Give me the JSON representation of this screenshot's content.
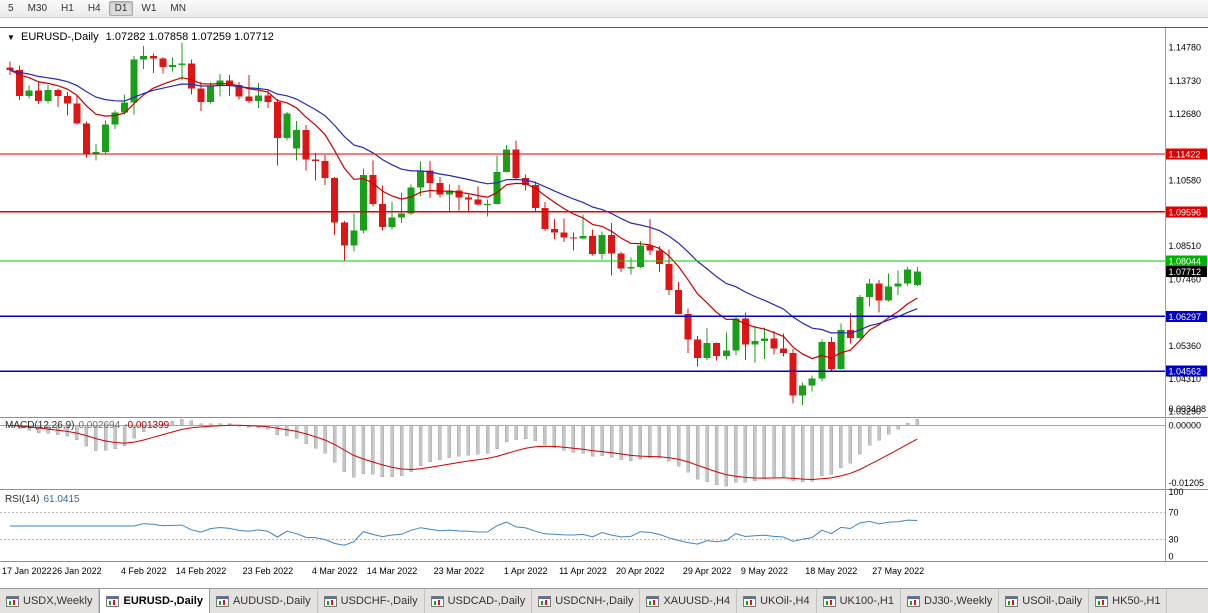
{
  "icons": {
    "dropdown": "▼"
  },
  "toolbar": {
    "timeframes": [
      "5",
      "M30",
      "H1",
      "H4",
      "D1",
      "W1",
      "MN"
    ],
    "active": "D1"
  },
  "chart": {
    "title": "EURUSD-,Daily",
    "ohlc": "1.07282 1.07858 1.07259 1.07712"
  },
  "price_axis": [
    {
      "text": "1.14780",
      "price": 1.1478,
      "style": "plain"
    },
    {
      "text": "1.13730",
      "price": 1.1373,
      "style": "plain"
    },
    {
      "text": "1.12680",
      "price": 1.1268,
      "style": "plain"
    },
    {
      "text": "1.11422",
      "price": 1.11422,
      "style": "box",
      "color": "#E00000"
    },
    {
      "text": "1.10580",
      "price": 1.1058,
      "style": "plain"
    },
    {
      "text": "1.09596",
      "price": 1.09596,
      "style": "box",
      "color": "#E00000"
    },
    {
      "text": "1.08510",
      "price": 1.0851,
      "style": "plain"
    },
    {
      "text": "1.08044",
      "price": 1.08044,
      "style": "box",
      "color": "#00B200"
    },
    {
      "text": "1.07712",
      "price": 1.07712,
      "style": "box",
      "color": "#000000"
    },
    {
      "text": "1.07460",
      "price": 1.0746,
      "style": "plain"
    },
    {
      "text": "1.06297",
      "price": 1.06297,
      "style": "box",
      "color": "#0000C8"
    },
    {
      "text": "1.05360",
      "price": 1.0536,
      "style": "plain"
    },
    {
      "text": "1.04562",
      "price": 1.04562,
      "style": "box",
      "color": "#0000C8"
    },
    {
      "text": "1.04310",
      "price": 1.0431,
      "style": "plain"
    },
    {
      "text": "1.03290",
      "price": 1.0329,
      "style": "plain"
    }
  ],
  "levels": [
    {
      "price": 1.11422,
      "color": "#E00000"
    },
    {
      "price": 1.09596,
      "color": "#E00000"
    },
    {
      "price": 1.08044,
      "color": "#00CC00"
    },
    {
      "price": 1.06297,
      "color": "#0000C8"
    },
    {
      "price": 1.04562,
      "color": "#0000C8"
    }
  ],
  "macd": {
    "label": "MACD(12,26,9)",
    "value_main": "0.002694",
    "value_signal": "-0.001399",
    "fast": 12,
    "slow": 26,
    "signal": 9,
    "axis": [
      {
        "text": "0.003408",
        "value": 0.003408
      },
      {
        "text": "0.00000",
        "value": 0
      },
      {
        "text": "-0.01205",
        "value": -0.01205
      }
    ]
  },
  "rsi": {
    "label": "RSI(14)",
    "value": "61.0415",
    "period": 14,
    "levels": [
      70,
      30
    ],
    "axis": [
      {
        "text": "100",
        "value": 100
      },
      {
        "text": "70",
        "value": 70
      },
      {
        "text": "30",
        "value": 30
      },
      {
        "text": "0",
        "value": 0
      }
    ]
  },
  "x_axis": [
    {
      "index": 0,
      "text": "17 Jan 2022"
    },
    {
      "index": 7,
      "text": "26 Jan 2022"
    },
    {
      "index": 14,
      "text": "4 Feb 2022"
    },
    {
      "index": 20,
      "text": "14 Feb 2022"
    },
    {
      "index": 27,
      "text": "23 Feb 2022"
    },
    {
      "index": 34,
      "text": "4 Mar 2022"
    },
    {
      "index": 40,
      "text": "14 Mar 2022"
    },
    {
      "index": 47,
      "text": "23 Mar 2022"
    },
    {
      "index": 54,
      "text": "1 Apr 2022"
    },
    {
      "index": 60,
      "text": "11 Apr 2022"
    },
    {
      "index": 66,
      "text": "20 Apr 2022"
    },
    {
      "index": 73,
      "text": "29 Apr 2022"
    },
    {
      "index": 79,
      "text": "9 May 2022"
    },
    {
      "index": 86,
      "text": "18 May 2022"
    },
    {
      "index": 93,
      "text": "27 May 2022"
    }
  ],
  "tabs": [
    {
      "label": "USDX,Weekly",
      "active": false
    },
    {
      "label": "EURUSD-,Daily",
      "active": true
    },
    {
      "label": "AUDUSD-,Daily",
      "active": false
    },
    {
      "label": "USDCHF-,Daily",
      "active": false
    },
    {
      "label": "USDCAD-,Daily",
      "active": false
    },
    {
      "label": "USDCNH-,Daily",
      "active": false
    },
    {
      "label": "XAUUSD-,H4",
      "active": false
    },
    {
      "label": "UKOil-,H4",
      "active": false
    },
    {
      "label": "UK100-,H1",
      "active": false
    },
    {
      "label": "DJ30-,Weekly",
      "active": false
    },
    {
      "label": "USOil-,Daily",
      "active": false
    },
    {
      "label": "HK50-,H1",
      "active": false
    }
  ],
  "colors": {
    "up": "#18A018",
    "down": "#DD1515",
    "ma_fast": "#C80000",
    "ma_slow": "#2828B4",
    "macd_hist": "#C6C6C6",
    "macd_signal": "#D00000",
    "rsi_line": "#3E86C8"
  },
  "chart_data": {
    "type": "candlestick",
    "symbol": "EURUSD-",
    "timeframe": "Daily",
    "ylim": [
      1.0318,
      1.154
    ],
    "moving_averages": [
      {
        "type": "ema",
        "period": 10,
        "color_key": "ma_fast"
      },
      {
        "type": "ema",
        "period": 21,
        "color_key": "ma_slow"
      }
    ],
    "candles": [
      [
        1.1415,
        1.1435,
        1.1392,
        1.1407
      ],
      [
        1.1407,
        1.1422,
        1.1313,
        1.1325
      ],
      [
        1.1325,
        1.1358,
        1.1317,
        1.1343
      ],
      [
        1.1343,
        1.1369,
        1.13,
        1.131
      ],
      [
        1.131,
        1.136,
        1.1302,
        1.1344
      ],
      [
        1.1344,
        1.1349,
        1.1291,
        1.1325
      ],
      [
        1.1325,
        1.1338,
        1.1264,
        1.1301
      ],
      [
        1.1301,
        1.1325,
        1.1235,
        1.1239
      ],
      [
        1.1239,
        1.1245,
        1.1131,
        1.1144
      ],
      [
        1.1144,
        1.1174,
        1.1121,
        1.1148
      ],
      [
        1.1148,
        1.1248,
        1.1141,
        1.1235
      ],
      [
        1.1235,
        1.1279,
        1.1221,
        1.1273
      ],
      [
        1.1273,
        1.133,
        1.1267,
        1.1304
      ],
      [
        1.1304,
        1.1451,
        1.1267,
        1.1441
      ],
      [
        1.1441,
        1.1483,
        1.1411,
        1.1452
      ],
      [
        1.1452,
        1.146,
        1.1398,
        1.1443
      ],
      [
        1.1443,
        1.1449,
        1.1396,
        1.1417
      ],
      [
        1.1417,
        1.1447,
        1.1402,
        1.1423
      ],
      [
        1.1423,
        1.1495,
        1.1374,
        1.1428
      ],
      [
        1.1428,
        1.1441,
        1.133,
        1.1349
      ],
      [
        1.1349,
        1.1369,
        1.1278,
        1.1306
      ],
      [
        1.1306,
        1.1368,
        1.1301,
        1.1357
      ],
      [
        1.1357,
        1.1395,
        1.1323,
        1.1374
      ],
      [
        1.1374,
        1.1392,
        1.1325,
        1.136
      ],
      [
        1.136,
        1.137,
        1.1315,
        1.1323
      ],
      [
        1.1323,
        1.1391,
        1.1303,
        1.131
      ],
      [
        1.131,
        1.1367,
        1.1287,
        1.1327
      ],
      [
        1.1327,
        1.1342,
        1.1287,
        1.1307
      ],
      [
        1.1307,
        1.1316,
        1.1106,
        1.1193
      ],
      [
        1.1193,
        1.1274,
        1.1184,
        1.127
      ],
      [
        1.116,
        1.1246,
        1.1122,
        1.1218
      ],
      [
        1.1218,
        1.1234,
        1.109,
        1.1125
      ],
      [
        1.1125,
        1.1145,
        1.1058,
        1.112
      ],
      [
        1.112,
        1.1139,
        1.1045,
        1.1066
      ],
      [
        1.1066,
        1.107,
        1.0886,
        1.0926
      ],
      [
        1.0926,
        1.0931,
        1.0806,
        1.0853
      ],
      [
        1.0853,
        1.0955,
        1.0834,
        1.0901
      ],
      [
        1.0901,
        1.1096,
        1.0891,
        1.1076
      ],
      [
        1.1076,
        1.1121,
        1.0976,
        1.0985
      ],
      [
        1.0985,
        1.1043,
        1.0901,
        1.0911
      ],
      [
        1.0911,
        1.0992,
        1.0903,
        1.0941
      ],
      [
        1.0941,
        1.102,
        1.0925,
        1.0955
      ],
      [
        1.0955,
        1.1046,
        1.095,
        1.1036
      ],
      [
        1.1036,
        1.1119,
        1.101,
        1.109
      ],
      [
        1.109,
        1.112,
        1.1003,
        1.1051
      ],
      [
        1.1051,
        1.1069,
        1.1004,
        1.1015
      ],
      [
        1.1015,
        1.1046,
        1.0962,
        1.1027
      ],
      [
        1.1027,
        1.1044,
        1.0963,
        1.1004
      ],
      [
        1.1004,
        1.1014,
        1.0962,
        1.0998
      ],
      [
        1.0998,
        1.1039,
        1.0979,
        1.0982
      ],
      [
        1.0982,
        1.0999,
        1.0944,
        1.0984
      ],
      [
        1.0984,
        1.1137,
        1.0982,
        1.1086
      ],
      [
        1.1086,
        1.1171,
        1.1083,
        1.1157
      ],
      [
        1.1157,
        1.1185,
        1.1061,
        1.1067
      ],
      [
        1.1067,
        1.1077,
        1.1027,
        1.1045
      ],
      [
        1.1045,
        1.1055,
        1.096,
        1.0972
      ],
      [
        1.0972,
        1.099,
        1.0899,
        1.0906
      ],
      [
        1.0906,
        1.0937,
        1.0874,
        1.0895
      ],
      [
        1.0895,
        1.0938,
        1.0865,
        1.0879
      ],
      [
        1.0879,
        1.0895,
        1.0837,
        1.0876
      ],
      [
        1.0876,
        1.0951,
        1.0872,
        1.0884
      ],
      [
        1.0884,
        1.0904,
        1.0821,
        1.0827
      ],
      [
        1.0827,
        1.0897,
        1.0809,
        1.0886
      ],
      [
        1.0886,
        1.0924,
        1.0758,
        1.0828
      ],
      [
        1.0828,
        1.0832,
        1.077,
        1.0781
      ],
      [
        1.0781,
        1.0815,
        1.0761,
        1.0786
      ],
      [
        1.0786,
        1.0867,
        1.0782,
        1.0853
      ],
      [
        1.0853,
        1.0937,
        1.0824,
        1.0838
      ],
      [
        1.0838,
        1.0852,
        1.077,
        1.0795
      ],
      [
        1.0795,
        1.0841,
        1.0697,
        1.0712
      ],
      [
        1.0712,
        1.0738,
        1.0635,
        1.0637
      ],
      [
        1.0637,
        1.0655,
        1.0514,
        1.0557
      ],
      [
        1.0557,
        1.0567,
        1.0471,
        1.0498
      ],
      [
        1.0498,
        1.0593,
        1.0492,
        1.0545
      ],
      [
        1.0545,
        1.0547,
        1.049,
        1.0505
      ],
      [
        1.0505,
        1.0578,
        1.0494,
        1.0522
      ],
      [
        1.0522,
        1.0632,
        1.0507,
        1.0622
      ],
      [
        1.0622,
        1.0642,
        1.0492,
        1.054
      ],
      [
        1.054,
        1.0599,
        1.0483,
        1.0551
      ],
      [
        1.0551,
        1.0594,
        1.0495,
        1.056
      ],
      [
        1.056,
        1.0584,
        1.0509,
        1.0528
      ],
      [
        1.0528,
        1.0576,
        1.0503,
        1.0513
      ],
      [
        1.0513,
        1.0527,
        1.0354,
        1.0379
      ],
      [
        1.0379,
        1.042,
        1.0349,
        1.0411
      ],
      [
        1.0411,
        1.0442,
        1.0392,
        1.0433
      ],
      [
        1.0433,
        1.0556,
        1.0424,
        1.0549
      ],
      [
        1.0549,
        1.0564,
        1.0459,
        1.0464
      ],
      [
        1.0464,
        1.0607,
        1.0462,
        1.0587
      ],
      [
        1.0587,
        1.0638,
        1.0543,
        1.0561
      ],
      [
        1.0561,
        1.0697,
        1.0556,
        1.0691
      ],
      [
        1.0691,
        1.0748,
        1.0661,
        1.0734
      ],
      [
        1.0734,
        1.0745,
        1.0641,
        1.068
      ],
      [
        1.068,
        1.0765,
        1.0677,
        1.0724
      ],
      [
        1.0724,
        1.0774,
        1.0697,
        1.0733
      ],
      [
        1.0733,
        1.0786,
        1.0726,
        1.0777
      ],
      [
        1.07282,
        1.07858,
        1.07259,
        1.07712
      ]
    ]
  }
}
